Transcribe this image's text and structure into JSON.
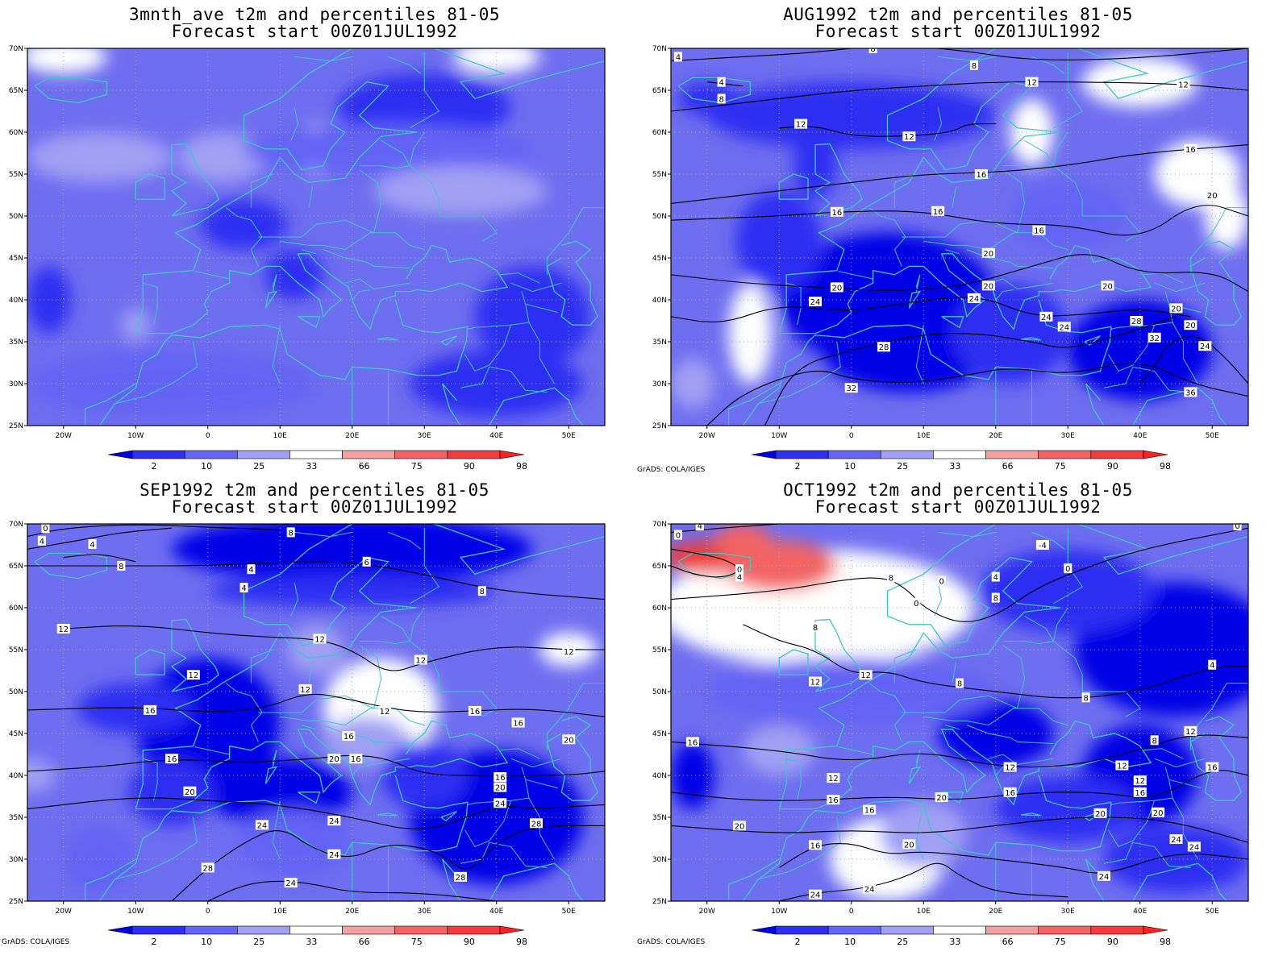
{
  "panels": [
    {
      "title": "3mnth_ave t2m and percentiles 81-05",
      "subtitle": "Forecast start 00Z01JUL1992",
      "credit": "",
      "contours": []
    },
    {
      "title": "AUG1992 t2m and percentiles 81-05",
      "subtitle": "Forecast start 00Z01JUL1992",
      "credit": "GrADS: COLA/IGES",
      "contours": [
        {
          "v": "4",
          "lon": -24,
          "lat": 69
        },
        {
          "v": "8",
          "lon": 3,
          "lat": 70
        },
        {
          "v": "4",
          "lon": -18,
          "lat": 66
        },
        {
          "v": "8",
          "lon": -18,
          "lat": 64
        },
        {
          "v": "8",
          "lon": 17,
          "lat": 68
        },
        {
          "v": "12",
          "lon": 25,
          "lat": 66
        },
        {
          "v": "12",
          "lon": 46,
          "lat": 65.7
        },
        {
          "v": "12",
          "lon": -7,
          "lat": 61
        },
        {
          "v": "12",
          "lon": 8,
          "lat": 59.5
        },
        {
          "v": "16",
          "lon": 47,
          "lat": 58
        },
        {
          "v": "16",
          "lon": 18,
          "lat": 55
        },
        {
          "v": "20",
          "lon": 50,
          "lat": 52.5
        },
        {
          "v": "16",
          "lon": -2,
          "lat": 50.5
        },
        {
          "v": "16",
          "lon": 12,
          "lat": 50.6
        },
        {
          "v": "16",
          "lon": 26,
          "lat": 48.3
        },
        {
          "v": "20",
          "lon": 19,
          "lat": 45.6
        },
        {
          "v": "20",
          "lon": -2,
          "lat": 41.5
        },
        {
          "v": "20",
          "lon": 19,
          "lat": 41.7
        },
        {
          "v": "20",
          "lon": 35.5,
          "lat": 41.7
        },
        {
          "v": "24",
          "lon": -5,
          "lat": 39.8
        },
        {
          "v": "24",
          "lon": 17,
          "lat": 40.2
        },
        {
          "v": "20",
          "lon": 45,
          "lat": 39
        },
        {
          "v": "24",
          "lon": 27,
          "lat": 38
        },
        {
          "v": "24",
          "lon": 29.5,
          "lat": 36.8
        },
        {
          "v": "28",
          "lon": 39.5,
          "lat": 37.5
        },
        {
          "v": "20",
          "lon": 47,
          "lat": 37
        },
        {
          "v": "32",
          "lon": 42,
          "lat": 35.5
        },
        {
          "v": "28",
          "lon": 4.5,
          "lat": 34.4
        },
        {
          "v": "24",
          "lon": 49,
          "lat": 34.5
        },
        {
          "v": "32",
          "lon": 0,
          "lat": 29.5
        },
        {
          "v": "36",
          "lon": 47,
          "lat": 29
        }
      ]
    },
    {
      "title": "SEP1992 t2m and percentiles 81-05",
      "subtitle": "Forecast start 00Z01JUL1992",
      "credit": "GrADS: COLA/IGES",
      "contours": [
        {
          "v": "0",
          "lon": -22.5,
          "lat": 69.5
        },
        {
          "v": "4",
          "lon": -23,
          "lat": 68
        },
        {
          "v": "4",
          "lon": -16,
          "lat": 67.6
        },
        {
          "v": "8",
          "lon": 11.5,
          "lat": 69
        },
        {
          "v": "8",
          "lon": -12,
          "lat": 65
        },
        {
          "v": "4",
          "lon": 6,
          "lat": 64.6
        },
        {
          "v": "4",
          "lon": 5,
          "lat": 62.4
        },
        {
          "v": "6",
          "lon": 22,
          "lat": 65.5
        },
        {
          "v": "8",
          "lon": 38,
          "lat": 62
        },
        {
          "v": "12",
          "lon": -20,
          "lat": 57.5
        },
        {
          "v": "12",
          "lon": 15.5,
          "lat": 56.3
        },
        {
          "v": "12",
          "lon": 50,
          "lat": 54.8
        },
        {
          "v": "12",
          "lon": -2,
          "lat": 52
        },
        {
          "v": "12",
          "lon": 29.5,
          "lat": 53.8
        },
        {
          "v": "12",
          "lon": 13.5,
          "lat": 50.3
        },
        {
          "v": "16",
          "lon": -8,
          "lat": 47.8
        },
        {
          "v": "12",
          "lon": 24.5,
          "lat": 47.7
        },
        {
          "v": "16",
          "lon": 37,
          "lat": 47.7
        },
        {
          "v": "16",
          "lon": 43,
          "lat": 46.3
        },
        {
          "v": "16",
          "lon": 19.5,
          "lat": 44.7
        },
        {
          "v": "20",
          "lon": 50,
          "lat": 44.3
        },
        {
          "v": "16",
          "lon": -5,
          "lat": 42
        },
        {
          "v": "20",
          "lon": 17.5,
          "lat": 42
        },
        {
          "v": "16",
          "lon": 20.5,
          "lat": 42
        },
        {
          "v": "16",
          "lon": 40.5,
          "lat": 39.8
        },
        {
          "v": "20",
          "lon": 40.5,
          "lat": 38.6
        },
        {
          "v": "20",
          "lon": -2.5,
          "lat": 38.1
        },
        {
          "v": "24",
          "lon": 40.5,
          "lat": 36.7
        },
        {
          "v": "24",
          "lon": 7.5,
          "lat": 34.1
        },
        {
          "v": "24",
          "lon": 17.5,
          "lat": 34.6
        },
        {
          "v": "28",
          "lon": 45.5,
          "lat": 34.3
        },
        {
          "v": "24",
          "lon": 17.5,
          "lat": 30.6
        },
        {
          "v": "28",
          "lon": 0,
          "lat": 29
        },
        {
          "v": "28",
          "lon": 35,
          "lat": 27.9
        },
        {
          "v": "24",
          "lon": 11.5,
          "lat": 27.2
        }
      ]
    },
    {
      "title": "OCT1992 t2m and percentiles 81-05",
      "subtitle": "Forecast start 00Z01JUL1992",
      "credit": "GrADS: COLA/IGES",
      "contours": [
        {
          "v": "4",
          "lon": -21,
          "lat": 69.8
        },
        {
          "v": "0",
          "lon": -24,
          "lat": 68.7
        },
        {
          "v": "0",
          "lon": 53.5,
          "lat": 69.8
        },
        {
          "v": "-4",
          "lon": 26.5,
          "lat": 67.5
        },
        {
          "v": "0",
          "lon": -15.5,
          "lat": 64.6
        },
        {
          "v": "4",
          "lon": -15.5,
          "lat": 63.7
        },
        {
          "v": "8",
          "lon": 5.5,
          "lat": 63.6
        },
        {
          "v": "0",
          "lon": 12.5,
          "lat": 63.2
        },
        {
          "v": "4",
          "lon": 20,
          "lat": 63.7
        },
        {
          "v": "0",
          "lon": 30,
          "lat": 64.7
        },
        {
          "v": "8",
          "lon": 20,
          "lat": 61.2
        },
        {
          "v": "0",
          "lon": 9,
          "lat": 60.6
        },
        {
          "v": "8",
          "lon": -5,
          "lat": 57.7
        },
        {
          "v": "12",
          "lon": 2,
          "lat": 52
        },
        {
          "v": "12",
          "lon": -5,
          "lat": 51.2
        },
        {
          "v": "4",
          "lon": 50,
          "lat": 53.2
        },
        {
          "v": "8",
          "lon": 15,
          "lat": 51
        },
        {
          "v": "8",
          "lon": 32.5,
          "lat": 49.3
        },
        {
          "v": "16",
          "lon": -22,
          "lat": 44
        },
        {
          "v": "12",
          "lon": 47,
          "lat": 45.3
        },
        {
          "v": "8",
          "lon": 42,
          "lat": 44.2
        },
        {
          "v": "12",
          "lon": 22,
          "lat": 41
        },
        {
          "v": "12",
          "lon": 37.5,
          "lat": 41.2
        },
        {
          "v": "16",
          "lon": 50,
          "lat": 41
        },
        {
          "v": "12",
          "lon": -2.5,
          "lat": 39.7
        },
        {
          "v": "12",
          "lon": 40,
          "lat": 39.4
        },
        {
          "v": "16",
          "lon": 22,
          "lat": 38
        },
        {
          "v": "16",
          "lon": 40,
          "lat": 38
        },
        {
          "v": "16",
          "lon": -2.5,
          "lat": 37.1
        },
        {
          "v": "20",
          "lon": 12.5,
          "lat": 37.4
        },
        {
          "v": "16",
          "lon": 2.5,
          "lat": 35.9
        },
        {
          "v": "20",
          "lon": 34.5,
          "lat": 35.5
        },
        {
          "v": "20",
          "lon": 42.5,
          "lat": 35.6
        },
        {
          "v": "20",
          "lon": -15.5,
          "lat": 34
        },
        {
          "v": "24",
          "lon": 45,
          "lat": 32.4
        },
        {
          "v": "24",
          "lon": 47.5,
          "lat": 31.5
        },
        {
          "v": "16",
          "lon": -5,
          "lat": 31.7
        },
        {
          "v": "20",
          "lon": 8,
          "lat": 31.8
        },
        {
          "v": "24",
          "lon": 35,
          "lat": 28
        },
        {
          "v": "24",
          "lon": -5,
          "lat": 25.8
        },
        {
          "v": "24",
          "lon": 2.5,
          "lat": 26.5
        }
      ]
    }
  ],
  "axes": {
    "lon_labels": [
      "20W",
      "10W",
      "0",
      "10E",
      "20E",
      "30E",
      "40E",
      "50E"
    ],
    "lon_values": [
      -20,
      -10,
      0,
      10,
      20,
      30,
      40,
      50
    ],
    "lat_labels": [
      "70N",
      "65N",
      "60N",
      "55N",
      "50N",
      "45N",
      "40N",
      "35N",
      "30N",
      "25N"
    ],
    "lat_values": [
      70,
      65,
      60,
      55,
      50,
      45,
      40,
      35,
      30,
      25
    ],
    "lon_range": [
      -25,
      55
    ],
    "lat_range": [
      25,
      70
    ]
  },
  "legend": {
    "labels": [
      "2",
      "10",
      "25",
      "33",
      "66",
      "75",
      "90",
      "98"
    ],
    "colors": [
      "#0000e6",
      "#2f2ff2",
      "#6464f5",
      "#a0a0f5",
      "#ffffff",
      "#f5a0a0",
      "#f26464",
      "#f03c3c",
      "#ff2020"
    ]
  },
  "colors": {
    "coastline": "#3cc8c8",
    "contour": "#000000",
    "grid": "#aaaaaa",
    "base_fill": "#6e6ef0"
  }
}
